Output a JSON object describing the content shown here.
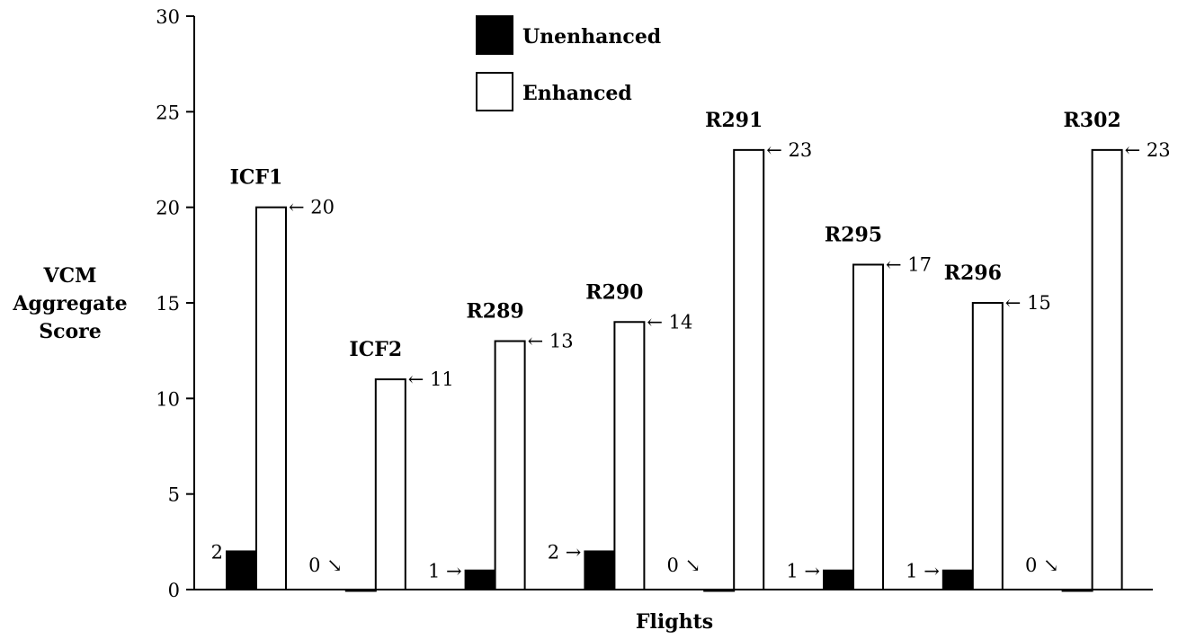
{
  "chart_data": {
    "type": "bar",
    "title": "",
    "xlabel": "Flights",
    "ylabel_lines": [
      "VCM",
      "Aggregate",
      "Score"
    ],
    "ylim": [
      0,
      30
    ],
    "yticks": [
      0,
      5,
      10,
      15,
      20,
      25,
      30
    ],
    "grid": false,
    "legend_placement": "top-center",
    "categories": [
      "ICF1",
      "ICF2",
      "R289",
      "R290",
      "R291",
      "R295",
      "R296",
      "R302"
    ],
    "series": [
      {
        "name": "Unenhanced",
        "color": "#000000",
        "values": [
          2,
          0,
          1,
          2,
          0,
          1,
          1,
          0
        ],
        "value_labels": [
          "2",
          "0 ↘",
          "1 →",
          "2 →",
          "0 ↘",
          "1 →",
          "1 →",
          "0 ↘"
        ]
      },
      {
        "name": "Enhanced",
        "color": "#ffffff",
        "values": [
          20,
          11,
          13,
          14,
          23,
          17,
          15,
          23
        ],
        "value_labels": [
          "← 20",
          "← 11",
          "← 13",
          "← 14",
          "← 23",
          "← 17",
          "← 15",
          "← 23"
        ]
      }
    ]
  }
}
